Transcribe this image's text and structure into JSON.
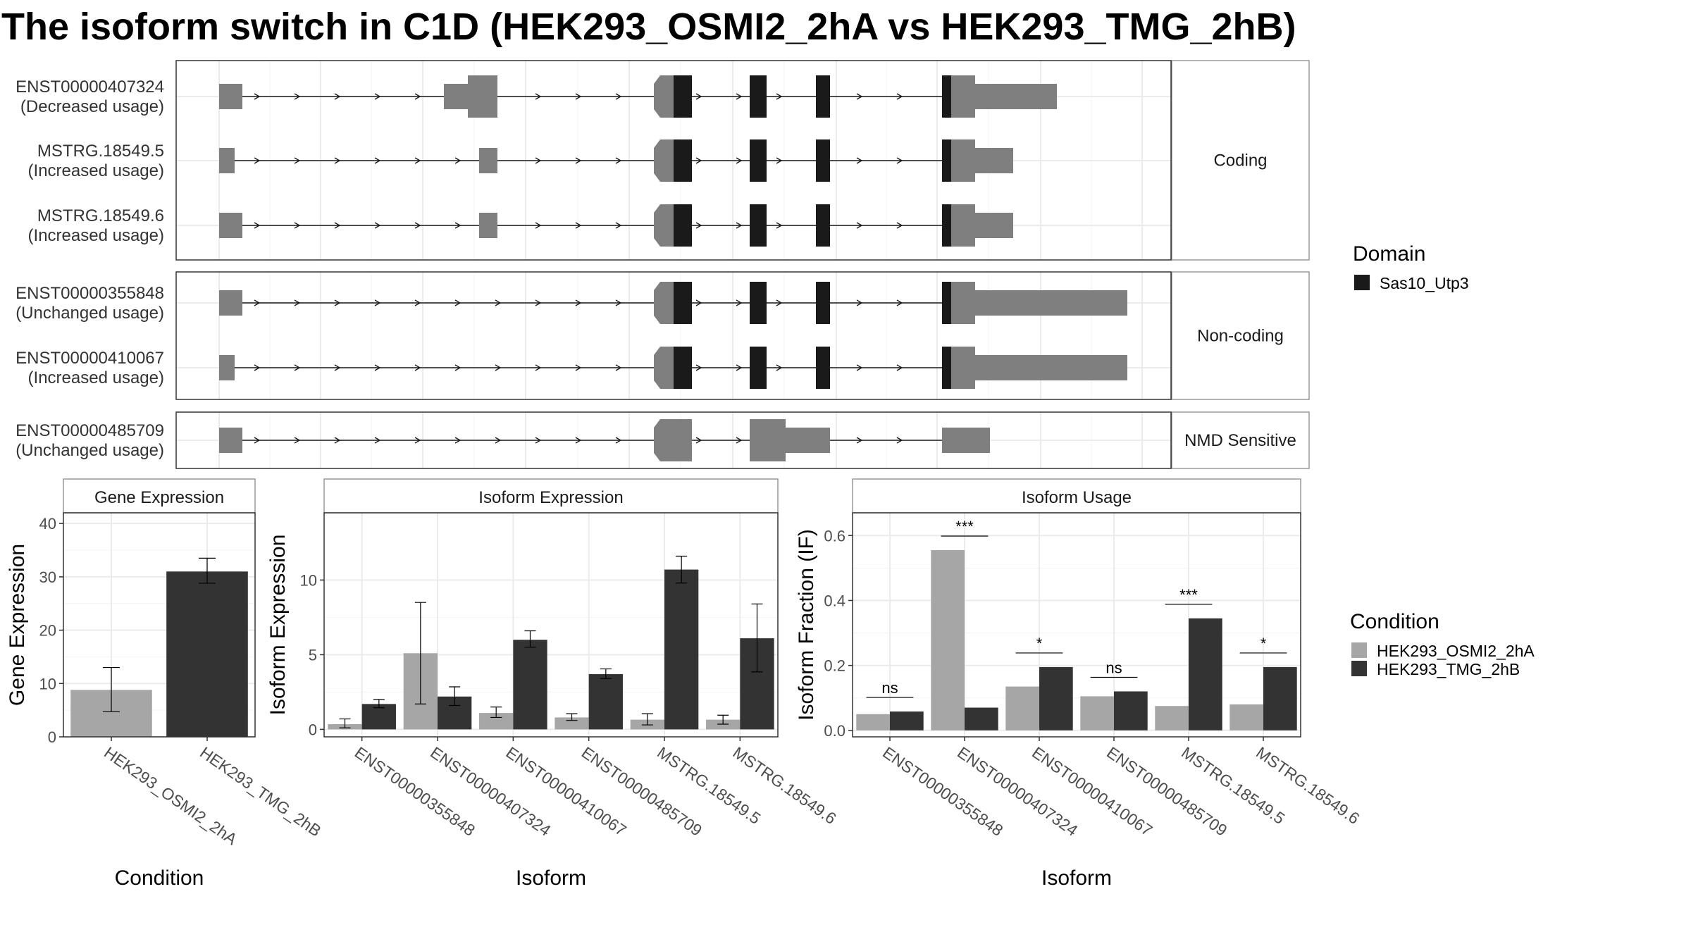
{
  "title": "The isoform switch in C1D (HEK293_OSMI2_2hA vs HEK293_TMG_2hB)",
  "colors": {
    "exon": "#7f7f7f",
    "domain": "#1a1a1a",
    "cond1": "#a6a6a6",
    "cond2": "#333333",
    "grid": "#ebebeb",
    "border": "#333333",
    "strip_bg": "#ffffff"
  },
  "legend": {
    "domain_title": "Domain",
    "domain_items": [
      "Sas10_Utp3"
    ],
    "condition_title": "Condition",
    "condition_items": [
      "HEK293_OSMI2_2hA",
      "HEK293_TMG_2hB"
    ]
  },
  "chart_data": [
    {
      "type": "gene-structure",
      "panels": [
        {
          "label": "Coding",
          "transcripts": [
            {
              "name": "ENST00000407324",
              "usage": "(Decreased usage)"
            },
            {
              "name": "MSTRG.18549.5",
              "usage": "(Increased usage)"
            },
            {
              "name": "MSTRG.18549.6",
              "usage": "(Increased usage)"
            }
          ]
        },
        {
          "label": "Non-coding",
          "transcripts": [
            {
              "name": "ENST00000355848",
              "usage": "(Unchanged usage)"
            },
            {
              "name": "ENST00000410067",
              "usage": "(Increased usage)"
            }
          ]
        },
        {
          "label": "NMD Sensitive",
          "transcripts": [
            {
              "name": "ENST00000485709",
              "usage": "(Unchanged usage)"
            }
          ]
        }
      ]
    },
    {
      "type": "bar",
      "strip": "Gene Expression",
      "ylabel": "Gene Expression",
      "xlabel": "Condition",
      "ylim": [
        0,
        42
      ],
      "yticks": [
        0,
        10,
        20,
        30,
        40
      ],
      "categories": [
        "HEK293_OSMI2_2hA",
        "HEK293_TMG_2hB"
      ],
      "values": [
        8.8,
        31.0
      ],
      "error": [
        [
          4.7,
          13.0
        ],
        [
          28.8,
          33.5
        ]
      ]
    },
    {
      "type": "bar",
      "strip": "Isoform Expression",
      "ylabel": "Isoform Expression",
      "xlabel": "Isoform",
      "ylim": [
        -0.5,
        14.5
      ],
      "yticks": [
        0,
        5,
        10
      ],
      "categories": [
        "ENST00000355848",
        "ENST00000407324",
        "ENST00000410067",
        "ENST00000485709",
        "MSTRG.18549.5",
        "MSTRG.18549.6"
      ],
      "series": [
        {
          "name": "HEK293_OSMI2_2hA",
          "values": [
            0.35,
            5.1,
            1.1,
            0.8,
            0.65,
            0.65
          ],
          "error": [
            [
              0.1,
              0.7
            ],
            [
              1.7,
              8.5
            ],
            [
              0.8,
              1.5
            ],
            [
              0.6,
              1.05
            ],
            [
              0.3,
              1.05
            ],
            [
              0.35,
              0.95
            ]
          ]
        },
        {
          "name": "HEK293_TMG_2hB",
          "values": [
            1.7,
            2.2,
            6.0,
            3.7,
            10.7,
            6.1
          ],
          "error": [
            [
              1.45,
              2.0
            ],
            [
              1.6,
              2.85
            ],
            [
              5.5,
              6.6
            ],
            [
              3.4,
              4.05
            ],
            [
              9.8,
              11.6
            ],
            [
              3.85,
              8.4
            ]
          ]
        }
      ]
    },
    {
      "type": "bar",
      "strip": "Isoform Usage",
      "ylabel": "Isoform Fraction (IF)",
      "xlabel": "Isoform",
      "ylim": [
        -0.02,
        0.67
      ],
      "yticks": [
        0.0,
        0.2,
        0.4,
        0.6
      ],
      "ytick_labels": [
        "0.0",
        "0.2",
        "0.4",
        "0.6"
      ],
      "categories": [
        "ENST00000355848",
        "ENST00000407324",
        "ENST00000410067",
        "ENST00000485709",
        "MSTRG.18549.5",
        "MSTRG.18549.6"
      ],
      "series": [
        {
          "name": "HEK293_OSMI2_2hA",
          "values": [
            0.05,
            0.555,
            0.135,
            0.105,
            0.075,
            0.08
          ]
        },
        {
          "name": "HEK293_TMG_2hB",
          "values": [
            0.058,
            0.07,
            0.195,
            0.12,
            0.345,
            0.195
          ]
        }
      ],
      "significance": [
        "ns",
        "***",
        "*",
        "ns",
        "***",
        "*"
      ]
    }
  ]
}
